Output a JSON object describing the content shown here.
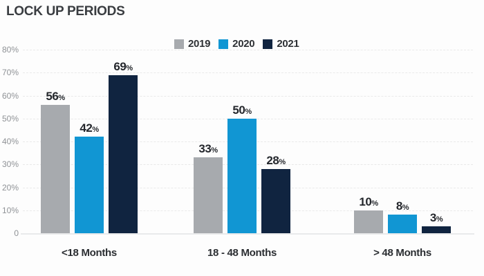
{
  "chart_data": {
    "type": "bar",
    "title": "LOCK UP PERIODS",
    "categories": [
      "<18 Months",
      "18 - 48 Months",
      "> 48 Months"
    ],
    "series": [
      {
        "name": "2019",
        "color": "#a7aaae",
        "values": [
          56,
          33,
          10
        ]
      },
      {
        "name": "2020",
        "color": "#1196d3",
        "values": [
          42,
          50,
          8
        ]
      },
      {
        "name": "2021",
        "color": "#102440",
        "values": [
          69,
          28,
          3
        ]
      }
    ],
    "value_suffix": "%",
    "ylim": [
      0,
      80
    ],
    "yticks": [
      {
        "v": 80,
        "label": "80%"
      },
      {
        "v": 70,
        "label": "70%"
      },
      {
        "v": 60,
        "label": "60%"
      },
      {
        "v": 50,
        "label": "50%"
      },
      {
        "v": 40,
        "label": "40%"
      },
      {
        "v": 30,
        "label": "30%"
      },
      {
        "v": 20,
        "label": "20%"
      },
      {
        "v": 10,
        "label": "10%"
      },
      {
        "v": 0,
        "label": "0"
      }
    ],
    "grid": true,
    "legend_position": "top",
    "xlabel": "",
    "ylabel": ""
  }
}
